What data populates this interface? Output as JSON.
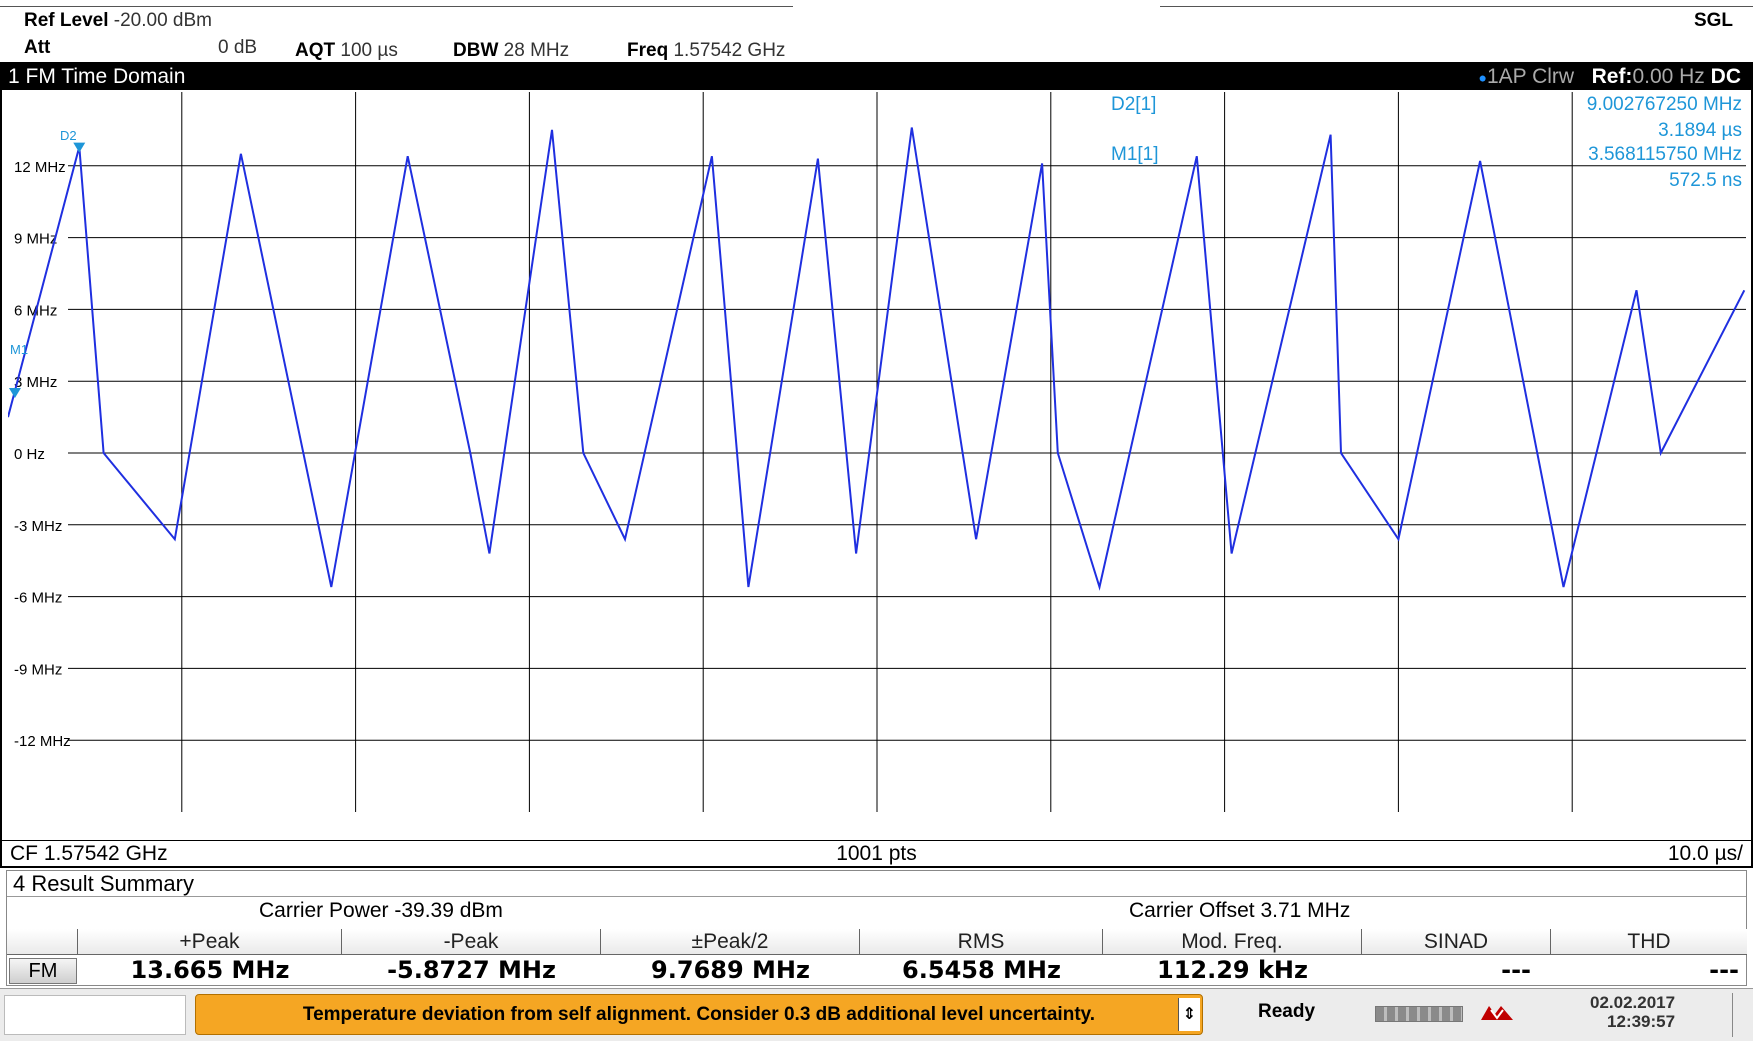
{
  "header": {
    "ref_level_label": "Ref Level",
    "ref_level_value": "-20.00 dBm",
    "att_label": "Att",
    "att_value": "0 dB",
    "aqt_label": "AQT",
    "aqt_value": "100 µs",
    "dbw_label": "DBW",
    "dbw_value": "28 MHz",
    "freq_label": "Freq",
    "freq_value": "1.57542 GHz",
    "mode": "SGL"
  },
  "diagram": {
    "title": "1 FM Time Domain",
    "trace_info": "1AP Clrw",
    "ref_label": "Ref:",
    "ref_value": "0.00 Hz",
    "coupling": "DC",
    "footer_cf": "CF 1.57542 GHz",
    "footer_pts": "1001 pts",
    "footer_div": "10.0 µs/",
    "colors": {
      "trace": "#1f2fe0",
      "marker": "#1e96d8",
      "grid": "#000000"
    }
  },
  "markers": {
    "d2_label": "D2[1]",
    "d2_freq": "9.002767250 MHz",
    "d2_time": "3.1894 µs",
    "m1_label": "M1[1]",
    "m1_freq": "3.568115750 MHz",
    "m1_time": "572.5 ns",
    "d2_tag": "D2",
    "m1_tag": "M1"
  },
  "chart_data": {
    "type": "line",
    "ylabel_ticks": [
      "12 MHz",
      "9 MHz",
      "6 MHz",
      "3 MHz",
      "0 Hz",
      "-3 MHz",
      "-6 MHz",
      "-9 MHz",
      "-12 MHz"
    ],
    "ylim_mhz": [
      -15,
      15
    ],
    "xlim_us": [
      0,
      100
    ],
    "grid": true,
    "series": [
      {
        "x_us": [
          0,
          4.1,
          5.5,
          9.6,
          13.4,
          18.6,
          23.0,
          26.6,
          27.7,
          31.3,
          33.1,
          35.5,
          40.5,
          42.6,
          46.6,
          48.8,
          52.0,
          55.7,
          59.5,
          60.4,
          62.8,
          68.4,
          70.4,
          76.1,
          76.7,
          80.0,
          84.7,
          89.5,
          93.7,
          95.1,
          99.9
        ],
        "y_mhz": [
          1.5,
          12.8,
          0,
          -3.6,
          12.5,
          -5.6,
          12.4,
          0,
          -4.2,
          13.5,
          0,
          -3.6,
          12.4,
          -5.6,
          12.3,
          -4.2,
          13.6,
          -3.6,
          12.1,
          0,
          -5.6,
          12.4,
          -4.2,
          13.3,
          0,
          -3.6,
          12.2,
          -5.6,
          6.8,
          0,
          6.8
        ]
      }
    ]
  },
  "result_summary": {
    "title": "4 Result Summary",
    "carrier_power": "Carrier Power  -39.39 dBm",
    "carrier_offset": "Carrier Offset  3.71 MHz",
    "row_label": "FM",
    "columns": [
      "+Peak",
      "-Peak",
      "±Peak/2",
      "RMS",
      "Mod. Freq.",
      "SINAD",
      "THD"
    ],
    "values": [
      "13.665 MHz",
      "-5.8727 MHz",
      "9.7689 MHz",
      "6.5458 MHz",
      "112.29 kHz",
      "---",
      "---"
    ]
  },
  "status": {
    "message": "Temperature deviation from self alignment. Consider 0.3 dB additional level uncertainty.",
    "state": "Ready",
    "date": "02.02.2017",
    "time": "12:39:57"
  }
}
